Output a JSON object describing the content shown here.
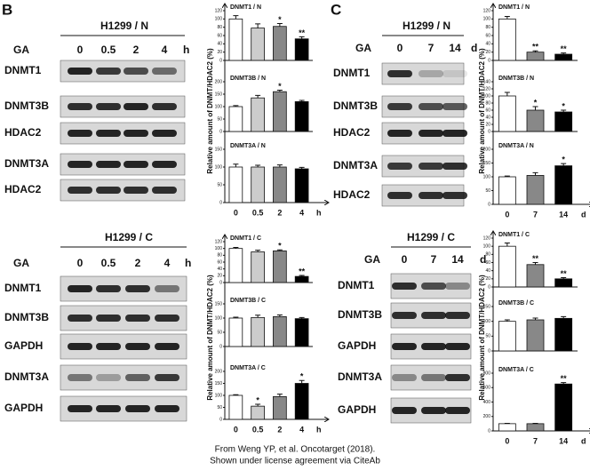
{
  "panels": [
    {
      "label": "B",
      "y_labels": [
        "Relative amount of DNMT/HDAC2 (%)",
        "Relative amount of DNMT/HDAC2 (%)"
      ],
      "blots": [
        {
          "title": "H1299 / N",
          "row_label": "GA",
          "conditions": [
            "0",
            "0.5",
            "2",
            "4"
          ],
          "unit": "h",
          "rows": [
            "DNMT1",
            "DNMT3B",
            "HDAC2",
            "DNMT3A",
            "HDAC2"
          ]
        },
        {
          "title": "H1299 / C",
          "row_label": "GA",
          "conditions": [
            "0",
            "0.5",
            "2",
            "4"
          ],
          "unit": "h",
          "rows": [
            "DNMT1",
            "DNMT3B",
            "GAPDH",
            "DNMT3A",
            "GAPDH"
          ]
        }
      ]
    },
    {
      "label": "C",
      "y_labels": [
        "Relative amount of DNMT/HDAC2 (%)",
        "Relative amount of DNMT/HDAC2 (%)"
      ],
      "blots": [
        {
          "title": "H1299 / N",
          "row_label": "GA",
          "conditions": [
            "0",
            "7",
            "14"
          ],
          "unit": "d",
          "rows": [
            "DNMT1",
            "DNMT3B",
            "HDAC2",
            "DNMT3A",
            "HDAC2"
          ]
        },
        {
          "title": "H1299 / C",
          "row_label": "GA",
          "conditions": [
            "0",
            "7",
            "14"
          ],
          "unit": "d",
          "rows": [
            "DNMT1",
            "DNMT3B",
            "GAPDH",
            "DNMT3A",
            "GAPDH"
          ]
        }
      ]
    }
  ],
  "chart_data": [
    {
      "type": "bar",
      "title": "DNMT1 / N",
      "values": [
        100,
        78,
        82,
        52
      ],
      "errors": [
        8,
        10,
        7,
        5
      ],
      "annotations": [
        null,
        null,
        "*",
        "**"
      ],
      "colors": [
        "#ffffff",
        "#cccccc",
        "#888888",
        "#000000"
      ],
      "ylim": [
        0,
        120
      ],
      "yticks": [
        0,
        20,
        40,
        60,
        80,
        100,
        120
      ]
    },
    {
      "type": "bar",
      "title": "DNMT3B / N",
      "values": [
        100,
        135,
        160,
        120
      ],
      "errors": [
        4,
        10,
        6,
        5
      ],
      "annotations": [
        null,
        null,
        "*",
        null
      ],
      "colors": [
        "#ffffff",
        "#cccccc",
        "#888888",
        "#000000"
      ],
      "ylim": [
        0,
        200
      ],
      "yticks": [
        0,
        50,
        100,
        150,
        200
      ]
    },
    {
      "type": "bar",
      "title": "DNMT3A / N",
      "values": [
        100,
        100,
        100,
        95
      ],
      "errors": [
        8,
        5,
        6,
        4
      ],
      "annotations": [
        null,
        null,
        null,
        null
      ],
      "colors": [
        "#ffffff",
        "#cccccc",
        "#888888",
        "#000000"
      ],
      "ylim": [
        0,
        150
      ],
      "yticks": [
        0,
        50,
        100,
        150
      ],
      "categories": [
        "0",
        "0.5",
        "2",
        "4"
      ],
      "x_unit": "h"
    },
    {
      "type": "bar",
      "title": "DNMT1 / C",
      "values": [
        100,
        90,
        93,
        18
      ],
      "errors": [
        3,
        5,
        3,
        3
      ],
      "annotations": [
        null,
        null,
        "*",
        "**"
      ],
      "colors": [
        "#ffffff",
        "#cccccc",
        "#888888",
        "#000000"
      ],
      "ylim": [
        0,
        120
      ],
      "yticks": [
        0,
        20,
        40,
        60,
        80,
        100,
        120
      ]
    },
    {
      "type": "bar",
      "title": "DNMT3B / C",
      "values": [
        100,
        102,
        105,
        98
      ],
      "errors": [
        3,
        8,
        6,
        4
      ],
      "annotations": [
        null,
        null,
        null,
        null
      ],
      "colors": [
        "#ffffff",
        "#cccccc",
        "#888888",
        "#000000"
      ],
      "ylim": [
        0,
        150
      ],
      "yticks": [
        0,
        50,
        100,
        150
      ]
    },
    {
      "type": "bar",
      "title": "DNMT3A / C",
      "values": [
        100,
        55,
        95,
        150
      ],
      "errors": [
        3,
        8,
        10,
        12
      ],
      "annotations": [
        null,
        "*",
        null,
        "*"
      ],
      "colors": [
        "#ffffff",
        "#cccccc",
        "#888888",
        "#000000"
      ],
      "ylim": [
        0,
        200
      ],
      "yticks": [
        0,
        50,
        100,
        150,
        200
      ],
      "categories": [
        "0",
        "0.5",
        "2",
        "4"
      ],
      "x_unit": "h"
    },
    {
      "type": "bar",
      "title": "DNMT1 / N",
      "values": [
        100,
        20,
        15
      ],
      "errors": [
        6,
        3,
        3
      ],
      "annotations": [
        null,
        "**",
        "**"
      ],
      "colors": [
        "#ffffff",
        "#888888",
        "#000000"
      ],
      "ylim": [
        0,
        120
      ],
      "yticks": [
        0,
        20,
        40,
        60,
        80,
        100,
        120
      ]
    },
    {
      "type": "bar",
      "title": "DNMT3B / N",
      "values": [
        100,
        60,
        55
      ],
      "errors": [
        10,
        10,
        5
      ],
      "annotations": [
        null,
        "*",
        "*"
      ],
      "colors": [
        "#ffffff",
        "#888888",
        "#000000"
      ],
      "ylim": [
        0,
        140
      ],
      "yticks": [
        0,
        20,
        40,
        60,
        80,
        100,
        120,
        140
      ]
    },
    {
      "type": "bar",
      "title": "DNMT3A / N",
      "values": [
        100,
        105,
        140
      ],
      "errors": [
        3,
        10,
        8
      ],
      "annotations": [
        null,
        null,
        "*"
      ],
      "colors": [
        "#ffffff",
        "#888888",
        "#000000"
      ],
      "ylim": [
        0,
        200
      ],
      "yticks": [
        0,
        50,
        100,
        150,
        200
      ],
      "categories": [
        "0",
        "7",
        "14"
      ],
      "x_unit": "d"
    },
    {
      "type": "bar",
      "title": "DNMT1 / C",
      "values": [
        100,
        55,
        20
      ],
      "errors": [
        8,
        5,
        3
      ],
      "annotations": [
        null,
        "**",
        "**"
      ],
      "colors": [
        "#ffffff",
        "#888888",
        "#000000"
      ],
      "ylim": [
        0,
        120
      ],
      "yticks": [
        0,
        20,
        40,
        60,
        80,
        100,
        120
      ]
    },
    {
      "type": "bar",
      "title": "DNMT3B / C",
      "values": [
        100,
        105,
        110
      ],
      "errors": [
        5,
        6,
        6
      ],
      "annotations": [
        null,
        null,
        null
      ],
      "colors": [
        "#ffffff",
        "#888888",
        "#000000"
      ],
      "ylim": [
        0,
        150
      ],
      "yticks": [
        0,
        50,
        100,
        150
      ]
    },
    {
      "type": "bar",
      "title": "DNMT3A / C",
      "values": [
        100,
        100,
        650
      ],
      "errors": [
        5,
        5,
        20
      ],
      "annotations": [
        null,
        null,
        "**"
      ],
      "colors": [
        "#ffffff",
        "#888888",
        "#000000"
      ],
      "ylim": [
        0,
        800
      ],
      "yticks": [
        0,
        200,
        400,
        600,
        800
      ],
      "categories": [
        "0",
        "7",
        "14"
      ],
      "x_unit": "d"
    }
  ],
  "footer": [
    "From Weng YP, et al. Oncotarget (2018).",
    "Shown under license agreement via CiteAb"
  ]
}
